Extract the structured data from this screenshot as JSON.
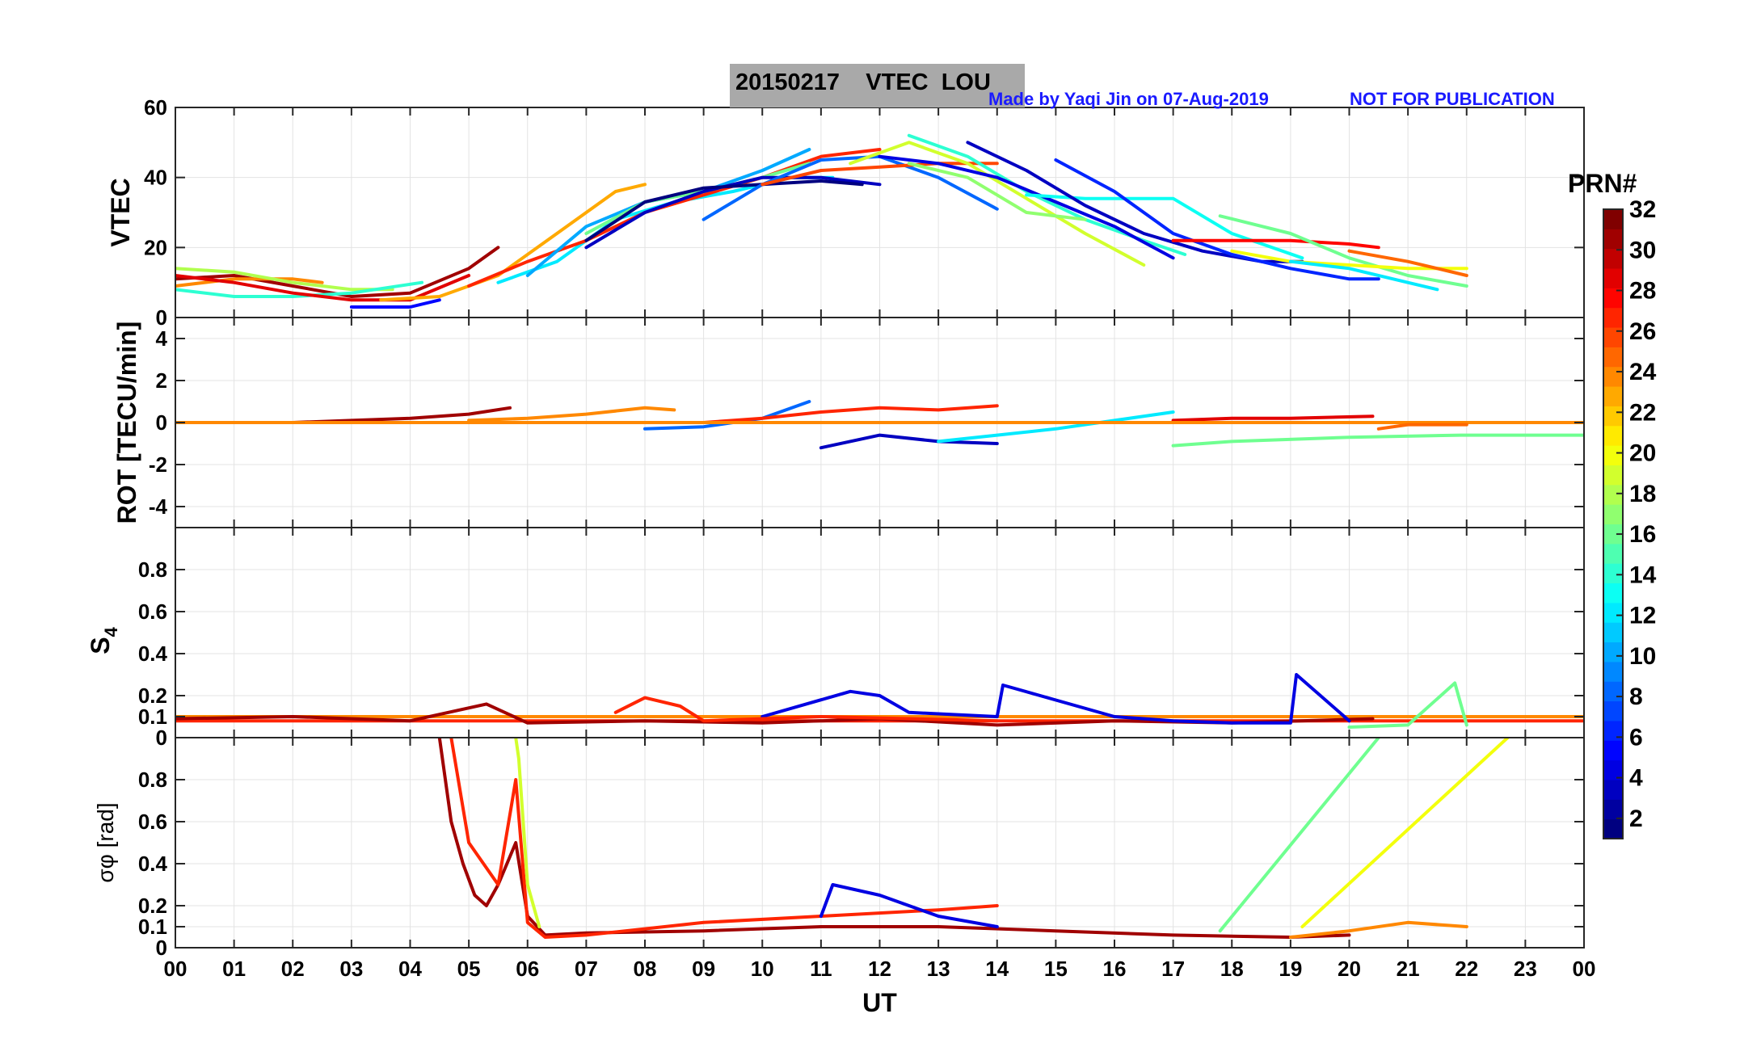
{
  "title": "20150217    VTEC  LOU",
  "credit_left": "Made by Yaqi Jin on 07-Aug-2019",
  "credit_right": "NOT FOR PUBLICATION",
  "colorbar": {
    "label": "PRN#",
    "ticks": [
      2,
      4,
      6,
      8,
      10,
      12,
      14,
      16,
      18,
      20,
      22,
      24,
      26,
      28,
      30,
      32
    ],
    "range": [
      1,
      32
    ],
    "colormap": "jet"
  },
  "xaxis": {
    "label": "UT",
    "ticks": [
      "00",
      "01",
      "02",
      "03",
      "04",
      "05",
      "06",
      "07",
      "08",
      "09",
      "10",
      "11",
      "12",
      "13",
      "14",
      "15",
      "16",
      "17",
      "18",
      "19",
      "20",
      "21",
      "22",
      "23",
      "00"
    ],
    "range": [
      0,
      24
    ]
  },
  "chart_data": [
    {
      "type": "line",
      "panel": "VTEC",
      "ylabel": "VTEC",
      "ylim": [
        0,
        60
      ],
      "yticks": [
        "0",
        "20",
        "40",
        "60"
      ],
      "series": [
        {
          "prn": 31,
          "x": [
            0,
            1,
            2,
            3,
            4,
            5,
            5.5
          ],
          "y": [
            11,
            12,
            9,
            6,
            7,
            14,
            20
          ]
        },
        {
          "prn": 24,
          "x": [
            0,
            1,
            2,
            2.5
          ],
          "y": [
            9,
            11,
            11,
            10
          ]
        },
        {
          "prn": 18,
          "x": [
            0,
            1,
            2,
            3,
            3.7
          ],
          "y": [
            14,
            13,
            10,
            8,
            8
          ]
        },
        {
          "prn": 14,
          "x": [
            0,
            1,
            2,
            3,
            4.2
          ],
          "y": [
            8,
            6,
            6,
            7,
            10
          ]
        },
        {
          "prn": 29,
          "x": [
            0,
            1,
            2,
            3,
            4,
            5
          ],
          "y": [
            12,
            10,
            7,
            5,
            5,
            12
          ]
        },
        {
          "prn": 5,
          "x": [
            3,
            4,
            4.5
          ],
          "y": [
            3,
            3,
            5
          ]
        },
        {
          "prn": 23,
          "x": [
            3.5,
            4.5,
            5.5,
            6.5,
            7.5,
            8
          ],
          "y": [
            5,
            6,
            12,
            24,
            36,
            38
          ]
        },
        {
          "prn": 12,
          "x": [
            5.5,
            6.5,
            7.5,
            8.5,
            9.5,
            10.5,
            11.2
          ],
          "y": [
            10,
            16,
            28,
            33,
            36,
            40,
            40
          ]
        },
        {
          "prn": 27,
          "x": [
            5,
            6,
            7,
            8,
            9,
            10,
            11,
            12
          ],
          "y": [
            9,
            16,
            22,
            30,
            35,
            40,
            46,
            48
          ]
        },
        {
          "prn": 10,
          "x": [
            6,
            7,
            8,
            9,
            10,
            10.8
          ],
          "y": [
            12,
            26,
            33,
            36,
            42,
            48
          ]
        },
        {
          "prn": 16,
          "x": [
            7,
            8,
            9,
            10,
            10.8
          ],
          "y": [
            24,
            33,
            36,
            40,
            44
          ]
        },
        {
          "prn": 3,
          "x": [
            7,
            8,
            9,
            10,
            11,
            12
          ],
          "y": [
            20,
            30,
            36,
            40,
            40,
            38
          ]
        },
        {
          "prn": 1,
          "x": [
            7,
            8,
            9,
            10,
            11,
            11.7
          ],
          "y": [
            22,
            33,
            37,
            38,
            39,
            38
          ]
        },
        {
          "prn": 8,
          "x": [
            9,
            10,
            11,
            12,
            13,
            14
          ],
          "y": [
            28,
            38,
            45,
            46,
            40,
            31
          ]
        },
        {
          "prn": 26,
          "x": [
            10,
            11,
            12,
            13,
            14
          ],
          "y": [
            38,
            42,
            43,
            44,
            44
          ]
        },
        {
          "prn": 19,
          "x": [
            11.5,
            12.5,
            13.5,
            14.5,
            15.5,
            16.5
          ],
          "y": [
            44,
            50,
            44,
            34,
            24,
            15
          ]
        },
        {
          "prn": 14,
          "x": [
            12.5,
            13.5,
            14.5,
            15.5,
            16.5,
            17.2
          ],
          "y": [
            52,
            46,
            36,
            28,
            22,
            18
          ]
        },
        {
          "prn": 4,
          "x": [
            12,
            13,
            14,
            15,
            16,
            17
          ],
          "y": [
            46,
            44,
            40,
            33,
            26,
            17
          ]
        },
        {
          "prn": 17,
          "x": [
            12.5,
            13.5,
            14.5,
            15.5
          ],
          "y": [
            44,
            40,
            30,
            28
          ]
        },
        {
          "prn": 13,
          "x": [
            14.5,
            15.5,
            16.5,
            17,
            18,
            19.2
          ],
          "y": [
            35,
            34,
            34,
            34,
            24,
            17
          ]
        },
        {
          "prn": 3,
          "x": [
            13.5,
            14.5,
            15.5,
            16.5,
            17.5,
            18.5,
            19.2
          ],
          "y": [
            50,
            42,
            32,
            24,
            19,
            16,
            16
          ]
        },
        {
          "prn": 6,
          "x": [
            15,
            16,
            17,
            18,
            19,
            20,
            20.5
          ],
          "y": [
            45,
            36,
            24,
            18,
            14,
            11,
            11
          ]
        },
        {
          "prn": 28,
          "x": [
            17,
            18,
            19,
            20,
            20.5
          ],
          "y": [
            22,
            22,
            22,
            21,
            20
          ]
        },
        {
          "prn": 16,
          "x": [
            17.8,
            19,
            20,
            21,
            22
          ],
          "y": [
            29,
            24,
            17,
            12,
            9
          ]
        },
        {
          "prn": 20,
          "x": [
            18,
            19,
            20,
            21,
            22
          ],
          "y": [
            19,
            16,
            15,
            14,
            14
          ]
        },
        {
          "prn": 12,
          "x": [
            19,
            20,
            21,
            21.5
          ],
          "y": [
            16,
            14,
            10,
            8
          ]
        },
        {
          "prn": 25,
          "x": [
            20,
            21,
            22
          ],
          "y": [
            19,
            16,
            12
          ]
        }
      ]
    },
    {
      "type": "line",
      "panel": "ROT",
      "ylabel": "ROT [TECU/min]",
      "ylim": [
        -5,
        5
      ],
      "yticks": [
        "-4",
        "-2",
        "0",
        "2",
        "4"
      ],
      "series": [
        {
          "prn": 31,
          "x": [
            0,
            1,
            2,
            3,
            4,
            5,
            5.7
          ],
          "y": [
            0,
            0,
            0,
            0.1,
            0.2,
            0.4,
            0.7
          ]
        },
        {
          "prn": 24,
          "x": [
            5,
            6,
            7,
            8,
            8.5
          ],
          "y": [
            0.1,
            0.2,
            0.4,
            0.7,
            0.6
          ]
        },
        {
          "prn": 8,
          "x": [
            8,
            9,
            10,
            10.8
          ],
          "y": [
            -0.3,
            -0.2,
            0.2,
            1.0
          ]
        },
        {
          "prn": 3,
          "x": [
            11,
            12,
            13,
            14
          ],
          "y": [
            -1.2,
            -0.6,
            -0.9,
            -1.0
          ]
        },
        {
          "prn": 12,
          "x": [
            13,
            14,
            15,
            16,
            17
          ],
          "y": [
            -0.9,
            -0.6,
            -0.3,
            0.1,
            0.5
          ]
        },
        {
          "prn": 16,
          "x": [
            17,
            18,
            20,
            21.9,
            24
          ],
          "y": [
            -1.1,
            -0.9,
            -0.7,
            -0.6,
            -0.6
          ]
        },
        {
          "prn": 27,
          "x": [
            9,
            10,
            11,
            12,
            13,
            14
          ],
          "y": [
            0,
            0.2,
            0.5,
            0.7,
            0.6,
            0.8
          ]
        },
        {
          "prn": 29,
          "x": [
            17,
            18,
            19,
            20.4
          ],
          "y": [
            0.1,
            0.2,
            0.2,
            0.3
          ]
        },
        {
          "prn": 24,
          "x": [
            0,
            24
          ],
          "y": [
            0,
            0
          ]
        },
        {
          "prn": 25,
          "x": [
            20.5,
            21,
            22
          ],
          "y": [
            -0.3,
            -0.1,
            -0.1
          ]
        }
      ]
    },
    {
      "type": "line",
      "panel": "S4",
      "ylabel": "S4",
      "ylim": [
        0,
        1
      ],
      "yticks": [
        "0",
        "0.1",
        "0.2",
        "0.4",
        "0.6",
        "0.8"
      ],
      "series": [
        {
          "prn": 24,
          "x": [
            0,
            24
          ],
          "y": [
            0.1,
            0.1
          ]
        },
        {
          "prn": 27,
          "x": [
            0,
            24
          ],
          "y": [
            0.08,
            0.08
          ]
        },
        {
          "prn": 31,
          "x": [
            0,
            2,
            4,
            5.3,
            6,
            8,
            10,
            12,
            14,
            16,
            18,
            20.4
          ],
          "y": [
            0.09,
            0.1,
            0.08,
            0.16,
            0.07,
            0.08,
            0.07,
            0.09,
            0.06,
            0.08,
            0.07,
            0.09
          ]
        },
        {
          "prn": 4,
          "x": [
            10,
            11.5,
            12,
            12.5,
            14,
            14.1,
            16,
            17,
            18,
            19,
            19.1,
            20
          ],
          "y": [
            0.1,
            0.22,
            0.2,
            0.12,
            0.1,
            0.25,
            0.1,
            0.08,
            0.07,
            0.07,
            0.3,
            0.08
          ]
        },
        {
          "prn": 16,
          "x": [
            20,
            21,
            21.8,
            22
          ],
          "y": [
            0.05,
            0.06,
            0.26,
            0.06
          ]
        },
        {
          "prn": 27,
          "x": [
            7.5,
            8,
            8.6,
            9,
            11,
            14
          ],
          "y": [
            0.12,
            0.19,
            0.15,
            0.08,
            0.1,
            0.08
          ]
        }
      ]
    },
    {
      "type": "line",
      "panel": "sigma_phi",
      "ylabel": "σφ [rad]",
      "ylim": [
        0,
        1
      ],
      "yticks": [
        "0",
        "0.1",
        "0.2",
        "0.4",
        "0.6",
        "0.8"
      ],
      "series": [
        {
          "prn": 31,
          "x": [
            4.5,
            4.7,
            4.9,
            5.1,
            5.3,
            5.5,
            5.8,
            6.0,
            6.3,
            7,
            9,
            11,
            13,
            15,
            17,
            19,
            20
          ],
          "y": [
            1.0,
            0.6,
            0.4,
            0.25,
            0.2,
            0.3,
            0.5,
            0.15,
            0.06,
            0.07,
            0.08,
            0.1,
            0.1,
            0.08,
            0.06,
            0.05,
            0.06
          ]
        },
        {
          "prn": 27,
          "x": [
            4.7,
            5.0,
            5.5,
            5.8,
            6.0,
            6.3,
            7,
            9,
            11,
            13,
            14
          ],
          "y": [
            1.0,
            0.5,
            0.3,
            0.8,
            0.12,
            0.05,
            0.06,
            0.12,
            0.15,
            0.18,
            0.2
          ]
        },
        {
          "prn": 19,
          "x": [
            5.8,
            5.85,
            6.0,
            6.2
          ],
          "y": [
            1.0,
            0.9,
            0.3,
            0.1
          ]
        },
        {
          "prn": 4,
          "x": [
            11,
            11.2,
            12,
            13,
            14
          ],
          "y": [
            0.15,
            0.3,
            0.25,
            0.15,
            0.1
          ]
        },
        {
          "prn": 16,
          "x": [
            17.8,
            20.5
          ],
          "y": [
            0.08,
            1.0
          ]
        },
        {
          "prn": 20,
          "x": [
            19.2,
            22.7
          ],
          "y": [
            0.1,
            1.0
          ]
        },
        {
          "prn": 24,
          "x": [
            19,
            20,
            21,
            22
          ],
          "y": [
            0.05,
            0.08,
            0.12,
            0.1
          ]
        }
      ]
    }
  ]
}
